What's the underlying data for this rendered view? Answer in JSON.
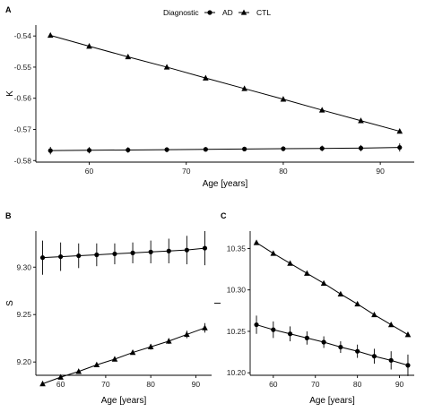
{
  "legend": {
    "title": "Diagnostic",
    "items": [
      {
        "label": "AD",
        "marker": "circle"
      },
      {
        "label": "CTL",
        "marker": "triangle"
      }
    ]
  },
  "colors": {
    "line": "#000000",
    "axis": "#000000",
    "background": "#ffffff"
  },
  "chart_data": [
    {
      "panel": "A",
      "type": "line",
      "xlabel": "Age [years]",
      "ylabel": "K",
      "xlim": [
        54.5,
        93.5
      ],
      "ylim": [
        -0.5805,
        -0.5365
      ],
      "xticks": [
        60,
        70,
        80,
        90
      ],
      "yticks": [
        -0.54,
        -0.55,
        -0.56,
        -0.57,
        -0.58
      ],
      "ytick_labels": [
        "-0.54",
        "-0.55",
        "-0.56",
        "-0.57",
        "-0.58"
      ],
      "x": [
        56,
        60,
        64,
        68,
        72,
        76,
        80,
        84,
        88,
        92
      ],
      "series": [
        {
          "name": "AD",
          "marker": "circle",
          "values": [
            -0.5768,
            -0.5767,
            -0.5766,
            -0.5765,
            -0.5764,
            -0.5763,
            -0.5762,
            -0.5761,
            -0.576,
            -0.5758
          ],
          "errors": [
            0.0012,
            0.001,
            0.0009,
            0.0008,
            0.0007,
            0.0007,
            0.0008,
            0.0009,
            0.001,
            0.0013
          ]
        },
        {
          "name": "CTL",
          "marker": "triangle",
          "values": [
            -0.5398,
            -0.5433,
            -0.5467,
            -0.55,
            -0.5535,
            -0.5569,
            -0.5603,
            -0.5638,
            -0.5672,
            -0.5706
          ],
          "errors": [
            0,
            0,
            0,
            0,
            0,
            0,
            0,
            0,
            0,
            0
          ]
        }
      ]
    },
    {
      "panel": "B",
      "type": "line",
      "xlabel": "Age [years]",
      "ylabel": "S",
      "xlim": [
        54.5,
        93.5
      ],
      "ylim": [
        9.186,
        9.338
      ],
      "xticks": [
        60,
        70,
        80,
        90
      ],
      "yticks": [
        9.2,
        9.25,
        9.3
      ],
      "ytick_labels": [
        "9.20",
        "9.25",
        "9.30"
      ],
      "x": [
        56,
        60,
        64,
        68,
        72,
        76,
        80,
        84,
        88,
        92
      ],
      "series": [
        {
          "name": "AD",
          "marker": "circle",
          "values": [
            9.31,
            9.311,
            9.312,
            9.313,
            9.314,
            9.315,
            9.316,
            9.317,
            9.318,
            9.32
          ],
          "errors": [
            0.018,
            0.015,
            0.013,
            0.012,
            0.011,
            0.011,
            0.012,
            0.013,
            0.015,
            0.018
          ]
        },
        {
          "name": "CTL",
          "marker": "triangle",
          "values": [
            9.177,
            9.184,
            9.19,
            9.197,
            9.203,
            9.21,
            9.216,
            9.222,
            9.229,
            9.236
          ],
          "errors": [
            0,
            0.002,
            0.002,
            0.002,
            0.002,
            0.002,
            0.003,
            0.003,
            0.004,
            0.005
          ]
        }
      ]
    },
    {
      "panel": "C",
      "type": "line",
      "xlabel": "Age [years]",
      "ylabel": "I",
      "xlim": [
        54.5,
        93.5
      ],
      "ylim": [
        10.197,
        10.371
      ],
      "xticks": [
        60,
        70,
        80,
        90
      ],
      "yticks": [
        10.2,
        10.25,
        10.3,
        10.35
      ],
      "ytick_labels": [
        "10.20",
        "10.25",
        "10.30",
        "10.35"
      ],
      "x": [
        56,
        60,
        64,
        68,
        72,
        76,
        80,
        84,
        88,
        92
      ],
      "series": [
        {
          "name": "AD",
          "marker": "circle",
          "values": [
            10.258,
            10.252,
            10.247,
            10.242,
            10.237,
            10.231,
            10.226,
            10.22,
            10.215,
            10.209
          ],
          "errors": [
            0.011,
            0.01,
            0.009,
            0.008,
            0.007,
            0.007,
            0.008,
            0.009,
            0.011,
            0.013
          ]
        },
        {
          "name": "CTL",
          "marker": "triangle",
          "values": [
            10.357,
            10.344,
            10.332,
            10.32,
            10.308,
            10.295,
            10.283,
            10.27,
            10.258,
            10.246
          ],
          "errors": [
            0,
            0,
            0,
            0,
            0,
            0,
            0,
            0,
            0,
            0.002
          ]
        }
      ]
    }
  ]
}
